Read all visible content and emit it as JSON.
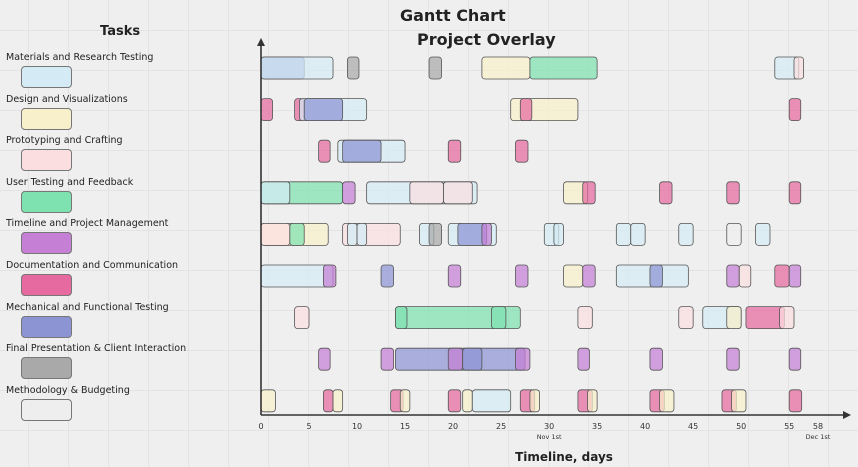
{
  "title": "Gantt Chart",
  "subtitle": "Project Overlay",
  "tasks_heading": "Tasks",
  "tasks": [
    {
      "label": "Materials and Research Testing",
      "color": "#d4ebf5"
    },
    {
      "label": "Design and Visualizations",
      "color": "#f8f0cb"
    },
    {
      "label": "Prototyping and Crafting",
      "color": "#fbdfe0"
    },
    {
      "label": "User Testing and Feedback",
      "color": "#7ee2b0"
    },
    {
      "label": "Timeline and Project Management",
      "color": "#c57fd5"
    },
    {
      "label": "Documentation and Communication",
      "color": "#e66aa0"
    },
    {
      "label": "Mechanical and Functional Testing",
      "color": "#8d94d4"
    },
    {
      "label": "Final Presentation & Client Interaction",
      "color": "#a9a9a9"
    },
    {
      "label": "Methodology & Budgeting",
      "color": "#eeeeee"
    }
  ],
  "chart_data": {
    "type": "gantt",
    "xlabel": "Timeline, days",
    "xlim": [
      0,
      58
    ],
    "ticks": [
      0,
      5,
      10,
      15,
      20,
      25,
      30,
      35,
      40,
      45,
      50,
      55,
      58
    ],
    "date_markers": [
      {
        "day": 30,
        "label": "Nov 1st"
      },
      {
        "day": 58,
        "label": "Dec 1st"
      }
    ],
    "rows": [
      [
        [
          0,
          4.5,
          6
        ],
        [
          0,
          7.5,
          0
        ],
        [
          9,
          10.2,
          7
        ],
        [
          17.5,
          18.8,
          7
        ],
        [
          23,
          28,
          1
        ],
        [
          28,
          35,
          3
        ],
        [
          53.5,
          56,
          0
        ],
        [
          55.5,
          56.5,
          2
        ]
      ],
      [
        [
          0,
          1.2,
          5
        ],
        [
          3.5,
          4.5,
          5
        ],
        [
          4,
          11,
          0
        ],
        [
          4.5,
          8.5,
          6
        ],
        [
          26,
          33,
          1
        ],
        [
          27,
          28.2,
          5
        ],
        [
          55,
          56.2,
          5
        ]
      ],
      [
        [
          6,
          7.2,
          5
        ],
        [
          8,
          15,
          0
        ],
        [
          8.5,
          12.5,
          6
        ],
        [
          19.5,
          20.8,
          5
        ],
        [
          26.5,
          27.8,
          5
        ]
      ],
      [
        [
          0,
          8.5,
          3
        ],
        [
          0,
          3,
          0
        ],
        [
          8.5,
          9.8,
          4
        ],
        [
          11,
          22.5,
          0
        ],
        [
          15.5,
          19,
          2
        ],
        [
          19,
          22,
          2
        ],
        [
          31.5,
          34,
          1
        ],
        [
          33.5,
          34.8,
          5
        ],
        [
          41.5,
          42.8,
          5
        ],
        [
          48.5,
          49.8,
          5
        ],
        [
          55,
          56.2,
          5
        ]
      ],
      [
        [
          0,
          7,
          1
        ],
        [
          0,
          3,
          2
        ],
        [
          3,
          4.5,
          3
        ],
        [
          8.5,
          14.5,
          2
        ],
        [
          9,
          10,
          0
        ],
        [
          10,
          11,
          0
        ],
        [
          16.5,
          18,
          0
        ],
        [
          17.5,
          18.8,
          7
        ],
        [
          19.5,
          24.5,
          0
        ],
        [
          20.5,
          23.5,
          6
        ],
        [
          23,
          24,
          4
        ],
        [
          29.5,
          31,
          0
        ],
        [
          30.5,
          31.5,
          0
        ],
        [
          37,
          38.5,
          0
        ],
        [
          38.5,
          40,
          0
        ],
        [
          43.5,
          45,
          0
        ],
        [
          48.5,
          50,
          8
        ],
        [
          51.5,
          53,
          0
        ]
      ],
      [
        [
          0,
          7.5,
          0
        ],
        [
          6.5,
          7.8,
          4
        ],
        [
          12.5,
          13.8,
          6
        ],
        [
          19.5,
          20.8,
          4
        ],
        [
          26.5,
          27.8,
          4
        ],
        [
          31.5,
          33.5,
          1
        ],
        [
          33.5,
          34.8,
          4
        ],
        [
          37,
          44.5,
          0
        ],
        [
          40.5,
          41.8,
          6
        ],
        [
          48.5,
          49.8,
          4
        ],
        [
          49.8,
          51,
          2
        ],
        [
          53.5,
          55,
          5
        ],
        [
          55,
          56.2,
          4
        ]
      ],
      [
        [
          3.5,
          5,
          2
        ],
        [
          14,
          27,
          3
        ],
        [
          14,
          15.2,
          3
        ],
        [
          24,
          25.5,
          3
        ],
        [
          33,
          34.5,
          2
        ],
        [
          43.5,
          45,
          2
        ],
        [
          46,
          50,
          0
        ],
        [
          48.5,
          50,
          1
        ],
        [
          50.5,
          54.5,
          5
        ],
        [
          54,
          55.5,
          2
        ]
      ],
      [
        [
          6,
          7.2,
          4
        ],
        [
          12.5,
          13.8,
          4
        ],
        [
          14,
          27.5,
          6
        ],
        [
          19.5,
          21,
          4
        ],
        [
          21,
          23,
          6
        ],
        [
          26.5,
          28,
          4
        ],
        [
          33,
          34.2,
          4
        ],
        [
          40.5,
          41.8,
          4
        ],
        [
          48.5,
          49.8,
          4
        ],
        [
          55,
          56.2,
          4
        ]
      ],
      [
        [
          0,
          1.5,
          1
        ],
        [
          6.5,
          7.5,
          5
        ],
        [
          7.5,
          8.5,
          1
        ],
        [
          13.5,
          14.8,
          5
        ],
        [
          14.5,
          15.5,
          1
        ],
        [
          19.5,
          20.8,
          5
        ],
        [
          21,
          22,
          1
        ],
        [
          22,
          26,
          0
        ],
        [
          27,
          28.5,
          5
        ],
        [
          28,
          29,
          1
        ],
        [
          33,
          34.5,
          5
        ],
        [
          34,
          35,
          1
        ],
        [
          40.5,
          42,
          5
        ],
        [
          41.5,
          43,
          1
        ],
        [
          48,
          49.5,
          5
        ],
        [
          49,
          50.5,
          1
        ],
        [
          55,
          56.3,
          5
        ]
      ]
    ]
  }
}
